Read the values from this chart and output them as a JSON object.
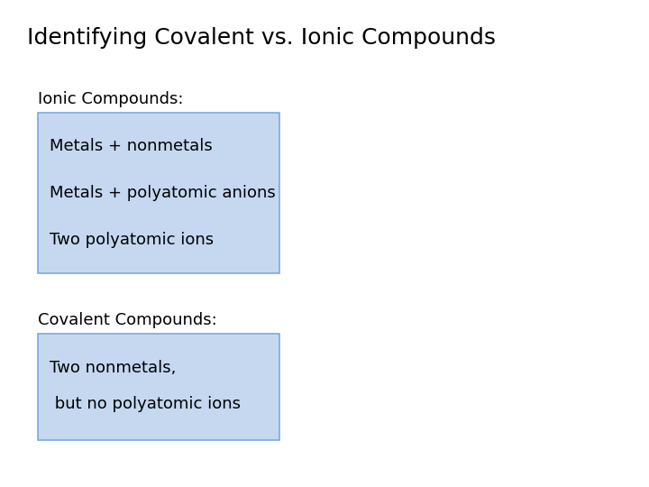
{
  "title": "Identifying Covalent vs. Ionic Compounds",
  "title_fontsize": 18,
  "background_color": "#ffffff",
  "box_color": "#c5d8f0",
  "box_edge_color": "#7aabdc",
  "ionic_label": "Ionic Compounds:",
  "ionic_items": [
    "Metals + nonmetals",
    "Metals + polyatomic anions",
    "Two polyatomic ions"
  ],
  "covalent_label": "Covalent Compounds:",
  "covalent_items_line1": "Two nonmetals,",
  "covalent_items_line2": " but no polyatomic ions",
  "label_fontsize": 13,
  "item_fontsize": 13,
  "font_family": "DejaVu Sans"
}
